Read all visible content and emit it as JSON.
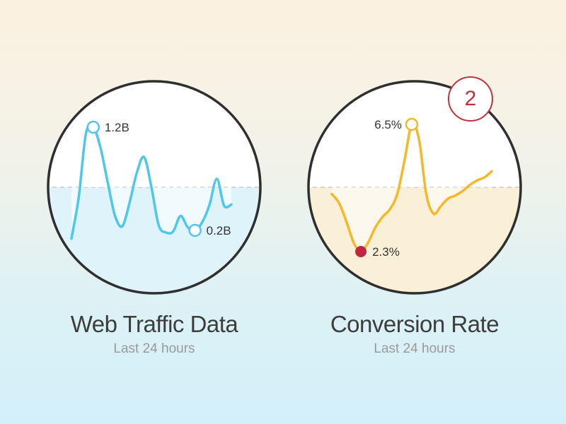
{
  "colors": {
    "traffic_line": "#4fc6ec",
    "traffic_fill": "#dff3fa",
    "conversion_line": "#f6b82a",
    "conversion_fill": "#faefd7",
    "low_marker": "#c0263f",
    "badge": "#c43038",
    "ring": "#2f2f2f"
  },
  "badge": {
    "value": "2"
  },
  "chart_data": [
    {
      "type": "line",
      "title": "Web Traffic Data",
      "subtitle": "Last 24 hours",
      "series": [
        {
          "values": [
            0.12,
            0.52,
            1.14,
            1.2,
            1.0,
            0.66,
            0.34,
            0.24,
            0.47,
            0.76,
            0.91,
            0.62,
            0.25,
            0.18,
            0.19,
            0.34,
            0.23,
            0.2,
            0.28,
            0.45,
            0.7,
            0.44,
            0.45
          ]
        }
      ],
      "annotations": [
        {
          "index": 3,
          "label": "1.2B",
          "marker": "open"
        },
        {
          "index": 17,
          "label": "0.2B",
          "marker": "open"
        }
      ]
    },
    {
      "type": "line",
      "title": "Conversion Rate",
      "subtitle": "Last 24 hours",
      "series": [
        {
          "values": [
            4.2,
            3.9,
            3.3,
            2.6,
            2.3,
            2.6,
            3.1,
            3.45,
            3.7,
            4.2,
            5.3,
            6.5,
            6.0,
            4.2,
            3.55,
            3.8,
            4.05,
            4.15,
            4.3,
            4.5,
            4.65,
            4.75,
            4.95
          ]
        }
      ],
      "annotations": [
        {
          "index": 11,
          "label": "6.5%",
          "marker": "open"
        },
        {
          "index": 4,
          "label": "2.3%",
          "marker": "filled"
        }
      ]
    }
  ]
}
